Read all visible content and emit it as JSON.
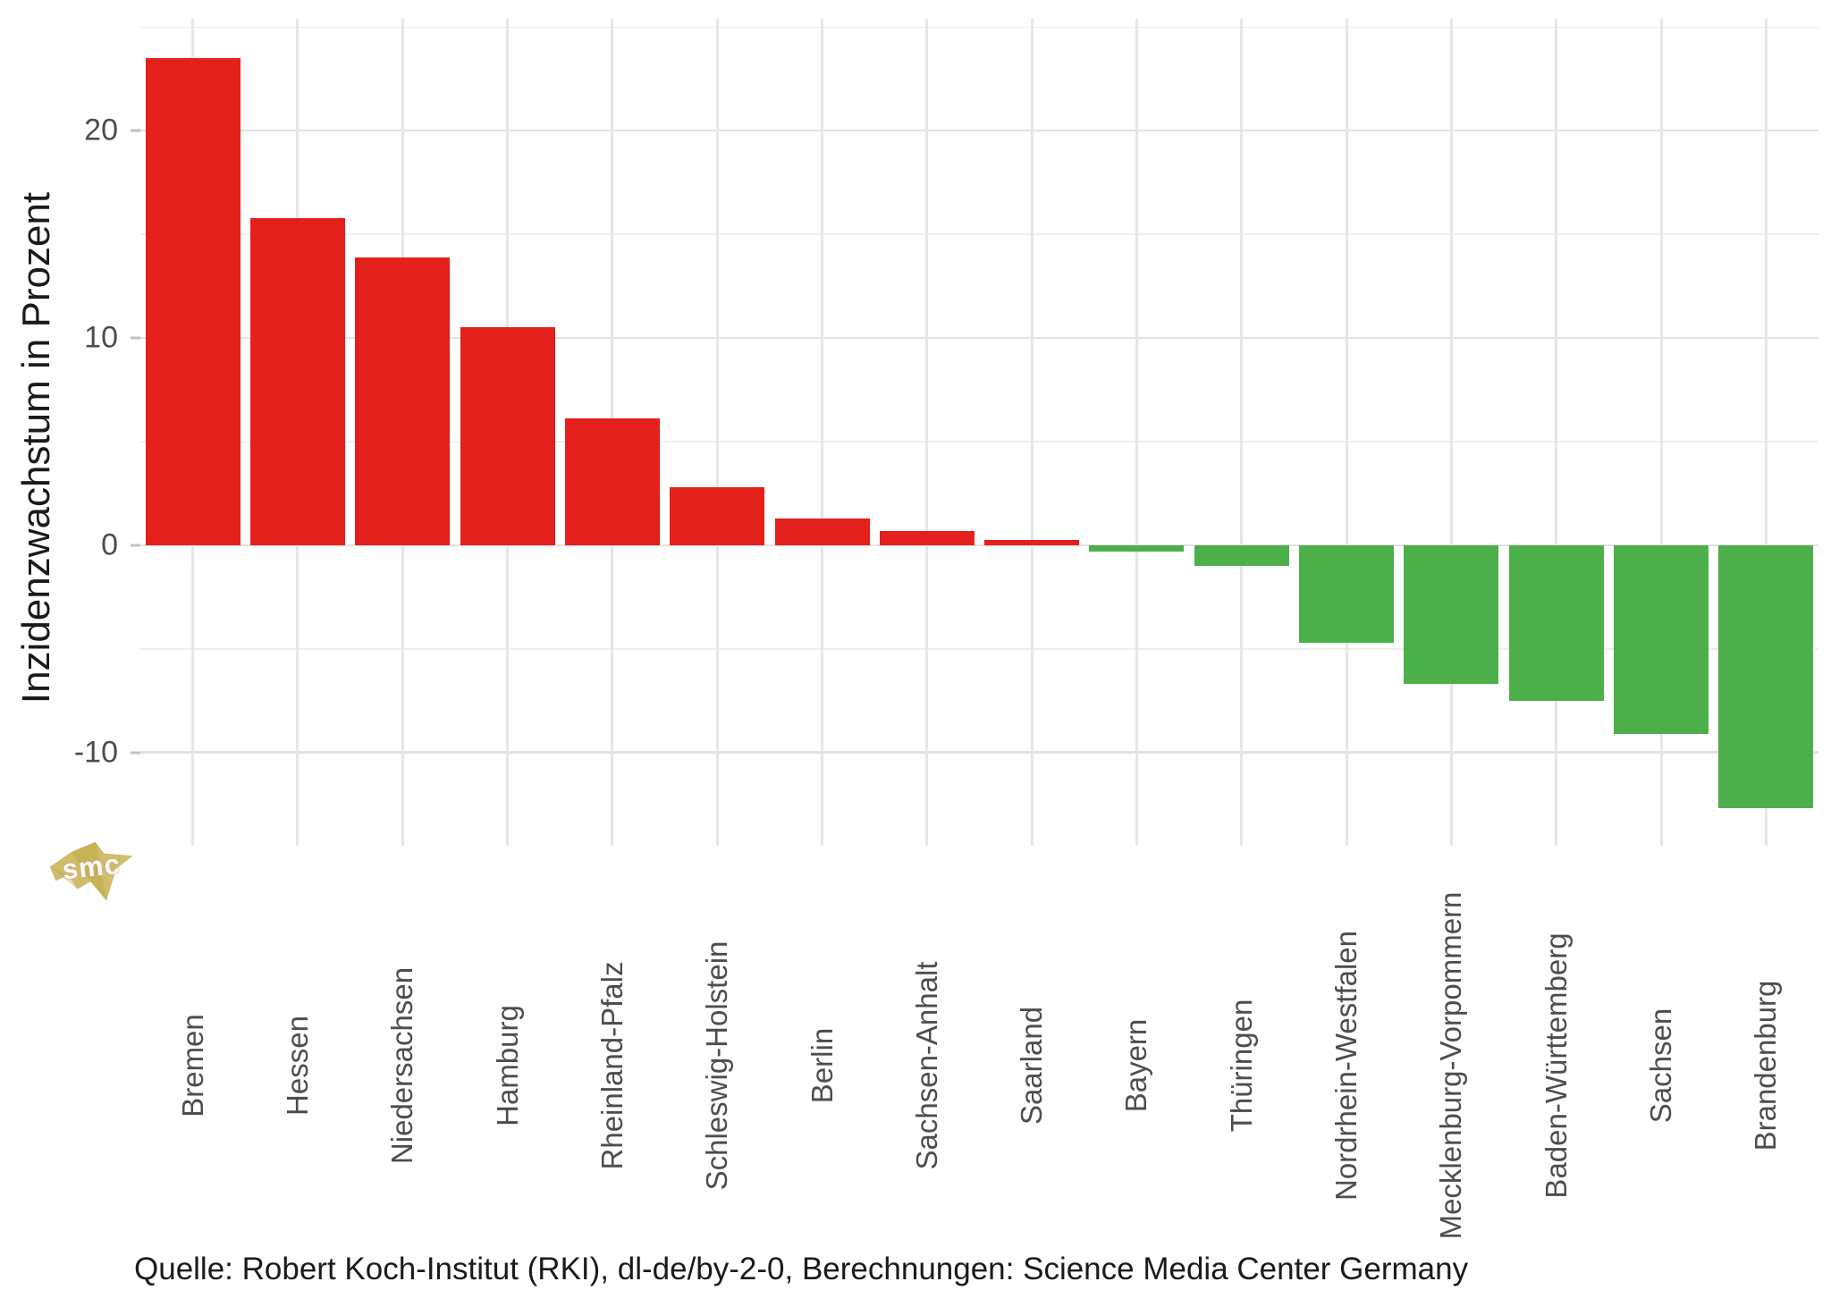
{
  "chart_data": {
    "type": "bar",
    "title": "",
    "xlabel": "",
    "ylabel": "Inzidenzwachstum in Prozent",
    "categories": [
      "Bremen",
      "Hessen",
      "Niedersachsen",
      "Hamburg",
      "Rheinland-Pfalz",
      "Schleswig-Holstein",
      "Berlin",
      "Sachsen-Anhalt",
      "Saarland",
      "Bayern",
      "Thüringen",
      "Nordrhein-Westfalen",
      "Mecklenburg-Vorpommern",
      "Baden-Württemberg",
      "Sachsen",
      "Brandenburg"
    ],
    "values": [
      23.5,
      15.8,
      13.9,
      10.5,
      6.1,
      2.8,
      1.3,
      0.7,
      0.25,
      -0.3,
      -1.0,
      -4.7,
      -6.7,
      -7.5,
      -9.1,
      -12.7
    ],
    "ylim": [
      -14.5,
      25.4
    ],
    "yticks_labeled": [
      20,
      10,
      0,
      -10
    ],
    "ytick_labels": [
      "20",
      "10",
      "0",
      "-10"
    ],
    "yticks_minor": [
      25,
      15,
      5,
      -5
    ],
    "grid": "on",
    "legend": "none",
    "colors": {
      "positive_bar": "#e3201c",
      "negative_bar": "#4daf4a",
      "grid_major": "#e2e2e2",
      "grid_minor": "#eeeeee",
      "grid_vertical": "#e6e6e6",
      "tick_text": "#4d4d4d",
      "tick_mark": "#c2c2c2",
      "axis_title_text": "#1a1a1a"
    }
  },
  "caption": {
    "text": "Quelle: Robert Koch-Institut (RKI), dl-de/by-2-0, Berechnungen: Science Media Center Germany"
  },
  "watermark": {
    "text": "smc",
    "color": "#c8b455"
  }
}
